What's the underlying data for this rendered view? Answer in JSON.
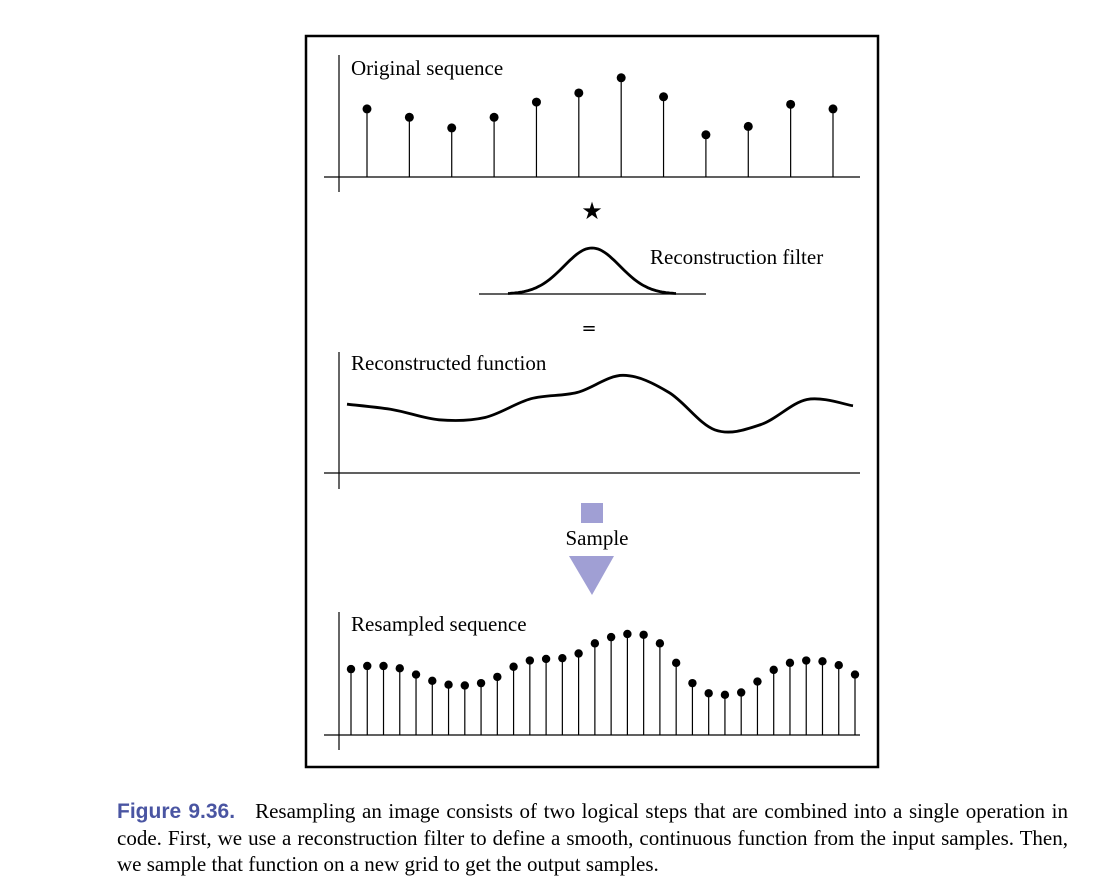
{
  "figure": {
    "panels": {
      "original": {
        "label": "Original sequence"
      },
      "filter": {
        "label": "Reconstruction filter"
      },
      "reconstructed": {
        "label": "Reconstructed function"
      },
      "resampled": {
        "label": "Resampled sequence"
      }
    },
    "operators": {
      "convolve": "★",
      "equals": "=",
      "sample": "Sample"
    },
    "colors": {
      "arrow": "#a09fd4",
      "caption_label": "#4a55a2",
      "ink": "#000000"
    }
  },
  "caption": {
    "label": "Figure 9.36.",
    "text": "Resampling an image consists of two logical steps that are combined into a single operation in code. First, we use a reconstruction filter to define a smooth, continuous function from the input samples. Then, we sample that function on a new grid to get the output samples."
  },
  "chart_data": [
    {
      "type": "scatter",
      "title": "Original sequence",
      "x": [
        1,
        2,
        3,
        4,
        5,
        6,
        7,
        8,
        9,
        10,
        11,
        12
      ],
      "y": [
        58,
        47,
        33,
        47,
        67,
        79,
        99,
        74,
        24,
        35,
        64,
        58
      ]
    },
    {
      "type": "line",
      "title": "Reconstruction filter",
      "x": [
        -3,
        -2,
        -1,
        0,
        1,
        2,
        3
      ],
      "y": [
        0,
        10,
        55,
        100,
        55,
        10,
        0
      ]
    },
    {
      "type": "line",
      "title": "Reconstructed function",
      "x": [
        1,
        2,
        3,
        4,
        5,
        6,
        7,
        8,
        9,
        10,
        11,
        12
      ],
      "y": [
        60,
        53,
        40,
        43,
        67,
        75,
        97,
        75,
        27,
        34,
        66,
        58
      ]
    },
    {
      "type": "scatter",
      "title": "Resampled sequence",
      "x": [
        1,
        2,
        3,
        4,
        5,
        6,
        7,
        8,
        9,
        10,
        11,
        12,
        13,
        14,
        15,
        16,
        17,
        18,
        19,
        20,
        21,
        22,
        23,
        24,
        25,
        26,
        27,
        28,
        29,
        30,
        31,
        32
      ],
      "y": [
        55,
        59,
        59,
        56,
        48,
        40,
        35,
        34,
        37,
        45,
        58,
        66,
        68,
        69,
        75,
        88,
        96,
        100,
        99,
        88,
        63,
        37,
        24,
        22,
        25,
        39,
        54,
        63,
        66,
        65,
        60,
        48
      ]
    }
  ]
}
